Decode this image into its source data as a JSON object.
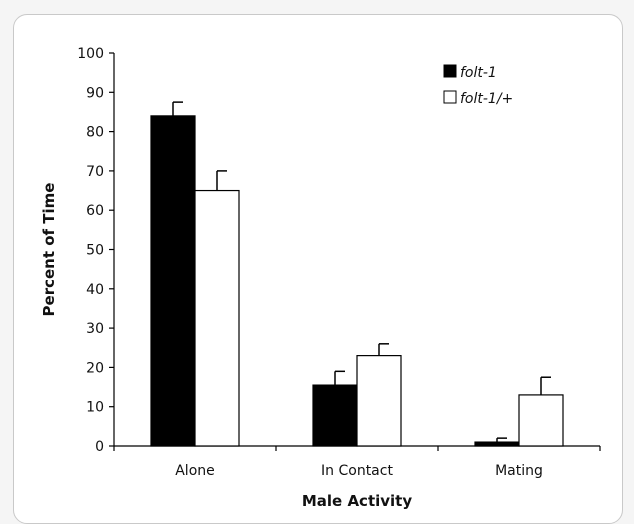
{
  "chart_data": {
    "type": "bar",
    "xlabel": "Male Activity",
    "ylabel": "Percent of Time",
    "ylim": [
      0,
      100
    ],
    "yticks": [
      "0",
      "10",
      "20",
      "30",
      "40",
      "50",
      "60",
      "70",
      "80",
      "90",
      "100"
    ],
    "categories": [
      "Alone",
      "In Contact",
      "Mating"
    ],
    "series": [
      {
        "name": "folt-1",
        "values": [
          84,
          15.5,
          1
        ],
        "errors": [
          3.5,
          3.5,
          1
        ],
        "color": "#000000"
      },
      {
        "name": "folt-1/+",
        "values": [
          65,
          23,
          13
        ],
        "errors": [
          5,
          3,
          4.5
        ],
        "color": "#ffffff"
      }
    ],
    "legend": "top-right",
    "grid": false
  }
}
